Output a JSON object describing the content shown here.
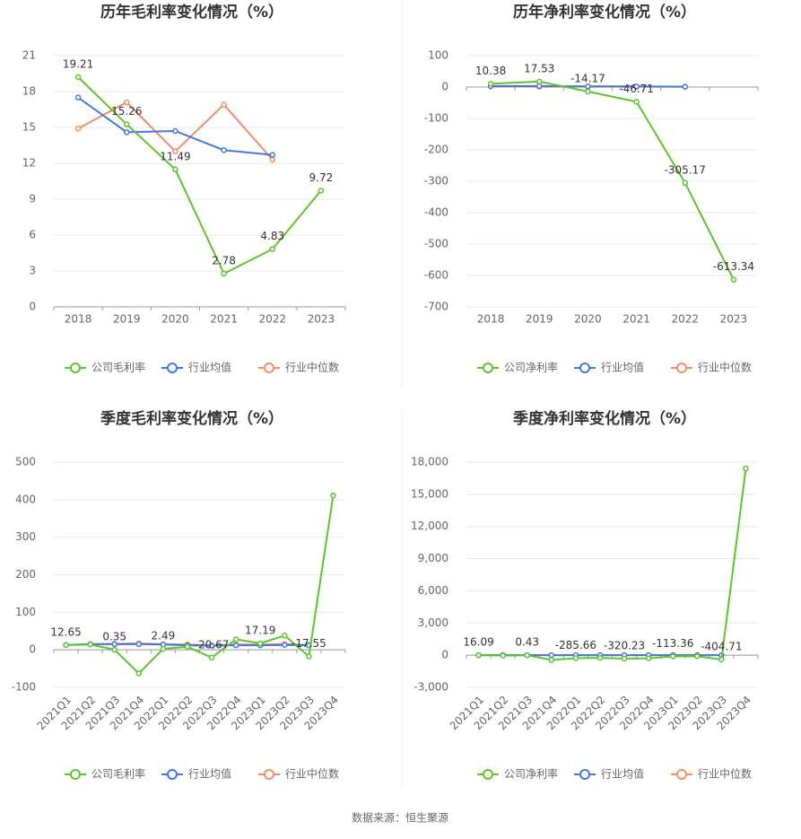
{
  "chart_data": [
    {
      "type": "line",
      "title": "历年毛利率变化情况（%）",
      "categories": [
        "2018",
        "2019",
        "2020",
        "2021",
        "2022",
        "2023"
      ],
      "series": [
        {
          "name": "公司毛利率",
          "color": "#5cc42e",
          "values": [
            19.21,
            15.26,
            11.49,
            2.78,
            4.83,
            9.72
          ],
          "value_labels": [
            "19.21",
            "15.26",
            "11.49",
            "2.78",
            "4.83",
            "9.72"
          ]
        },
        {
          "name": "行业均值",
          "color": "#4676e0",
          "values": [
            17.5,
            14.6,
            14.7,
            13.1,
            12.7,
            null
          ]
        },
        {
          "name": "行业中位数",
          "color": "#f28c6a",
          "values": [
            14.9,
            17.1,
            13.0,
            16.9,
            12.3,
            null
          ]
        }
      ],
      "ylim": [
        0,
        21
      ],
      "yticks": [
        0,
        3,
        6,
        9,
        12,
        15,
        18,
        21
      ],
      "grid": true
    },
    {
      "type": "line",
      "title": "历年净利率变化情况（%）",
      "categories": [
        "2018",
        "2019",
        "2020",
        "2021",
        "2022",
        "2023"
      ],
      "series": [
        {
          "name": "公司净利率",
          "color": "#5cc42e",
          "values": [
            10.38,
            17.53,
            -14.17,
            -46.71,
            -305.17,
            -613.34
          ],
          "value_labels": [
            "10.38",
            "17.53",
            "-14.17",
            "-46.71",
            "-305.17",
            "-613.34"
          ]
        },
        {
          "name": "行业均值",
          "color": "#4676e0",
          "values": [
            3,
            3,
            2,
            2,
            1,
            null
          ]
        },
        {
          "name": "行业中位数",
          "color": "#f28c6a",
          "values": [
            2,
            1,
            1,
            1,
            1,
            null
          ]
        }
      ],
      "ylim": [
        -700,
        100
      ],
      "yticks": [
        -700,
        -600,
        -500,
        -400,
        -300,
        -200,
        -100,
        0,
        100
      ],
      "grid": true
    },
    {
      "type": "line",
      "title": "季度毛利率变化情况（%）",
      "categories": [
        "2021Q1",
        "2021Q2",
        "2021Q3",
        "2021Q4",
        "2022Q1",
        "2022Q2",
        "2022Q3",
        "2022Q4",
        "2023Q1",
        "2023Q2",
        "2023Q3",
        "2023Q4"
      ],
      "series": [
        {
          "name": "公司毛利率",
          "color": "#5cc42e",
          "values": [
            12.65,
            14,
            0.35,
            -63,
            2.49,
            8,
            -20.67,
            28,
            17.19,
            38,
            -17.55,
            411
          ],
          "value_labels": [
            "12.65",
            null,
            "0.35",
            null,
            "2.49",
            null,
            "-20.67",
            null,
            "17.19",
            null,
            "-17.55",
            null
          ]
        },
        {
          "name": "行业均值",
          "color": "#4676e0",
          "values": [
            13,
            15,
            15,
            15,
            14,
            12,
            11,
            12,
            12,
            13,
            12,
            null
          ]
        },
        {
          "name": "行业中位数",
          "color": "#f28c6a",
          "values": [
            13,
            15,
            16,
            17,
            15,
            14,
            12,
            14,
            14,
            15,
            13,
            null
          ]
        }
      ],
      "ylim": [
        -100,
        500
      ],
      "yticks": [
        -100,
        0,
        100,
        200,
        300,
        400,
        500
      ],
      "grid": true
    },
    {
      "type": "line",
      "title": "季度净利率变化情况（%）",
      "categories": [
        "2021Q1",
        "2021Q2",
        "2021Q3",
        "2021Q4",
        "2022Q1",
        "2022Q2",
        "2022Q3",
        "2022Q4",
        "2023Q1",
        "2023Q2",
        "2023Q3",
        "2023Q4"
      ],
      "series": [
        {
          "name": "公司净利率",
          "color": "#5cc42e",
          "values": [
            16.09,
            -40,
            0.43,
            -450,
            -285.66,
            -250,
            -320.23,
            -290,
            -113.36,
            -100,
            -404.71,
            17400
          ],
          "value_labels": [
            "16.09",
            null,
            "0.43",
            null,
            "-285.66",
            null,
            "-320.23",
            null,
            "-113.36",
            null,
            "-404.71",
            null
          ]
        },
        {
          "name": "行业均值",
          "color": "#4676e0",
          "values": [
            5,
            5,
            4,
            3,
            2,
            2,
            1,
            1,
            1,
            1,
            1,
            null
          ]
        },
        {
          "name": "行业中位数",
          "color": "#f28c6a",
          "values": [
            4,
            4,
            3,
            2,
            2,
            1,
            1,
            1,
            1,
            1,
            1,
            null
          ]
        }
      ],
      "ylim": [
        -3000,
        18000
      ],
      "yticks": [
        {
          "value": -3000,
          "label": "-3,000"
        },
        0,
        {
          "value": 3000,
          "label": "3,000"
        },
        {
          "value": 6000,
          "label": "6,000"
        },
        {
          "value": 9000,
          "label": "9,000"
        },
        {
          "value": 12000,
          "label": "12,000"
        },
        {
          "value": 15000,
          "label": "15,000"
        },
        {
          "value": 18000,
          "label": "18,000"
        }
      ],
      "grid": true
    }
  ],
  "source": "数据来源：恒生聚源"
}
